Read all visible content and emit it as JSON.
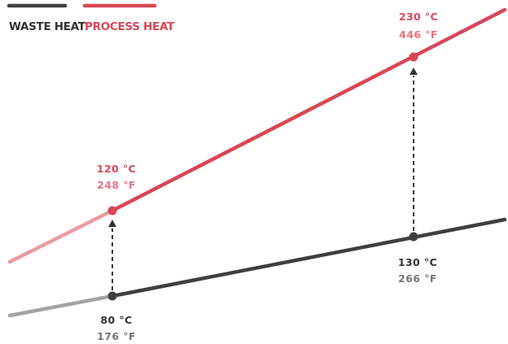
{
  "legend": {
    "waste_label": "WASTE HEAT",
    "process_label": "PROCESS HEAT"
  },
  "colors": {
    "waste": "#3f3f3f",
    "waste_faded": "#a3a3a3",
    "process": "#d94658",
    "process_faded": "#eb9aa3",
    "process_secondary": "#e7747f",
    "waste_secondary": "#777777"
  },
  "points": {
    "waste_low": {
      "celsius": "80 °C",
      "fahrenheit": "176 °F"
    },
    "waste_high": {
      "celsius": "130 °C",
      "fahrenheit": "266 °F"
    },
    "process_low": {
      "celsius": "120 °C",
      "fahrenheit": "248 °F"
    },
    "process_high": {
      "celsius": "230 °C",
      "fahrenheit": "446 °F"
    }
  }
}
